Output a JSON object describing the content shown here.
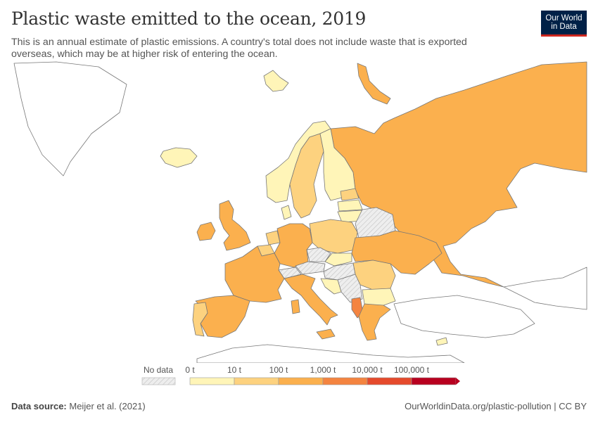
{
  "header": {
    "title": "Plastic waste emitted to the ocean, 2019",
    "subtitle": "This is an annual estimate of plastic emissions. A country's total does not include waste that is exported overseas, which may be at higher risk of entering the ocean."
  },
  "logo": {
    "line1": "Our World",
    "line2": "in Data"
  },
  "legend": {
    "no_data_label": "No data",
    "bins": [
      {
        "label": "0 t",
        "color": "#fff5b8"
      },
      {
        "label": "10 t",
        "color": "#fdd27f"
      },
      {
        "label": "100 t",
        "color": "#fbb04e"
      },
      {
        "label": "1,000 t",
        "color": "#f48440"
      },
      {
        "label": "10,000 t",
        "color": "#e54a2c"
      },
      {
        "label": "100,000 t",
        "color": "#b8001f"
      }
    ]
  },
  "colors": {
    "no_data_fill": "#eeeeee",
    "outline": "#666666",
    "background_land": "#ffffff"
  },
  "regions": [
    {
      "name": "Russia",
      "category": "100 t"
    },
    {
      "name": "Norway",
      "category": "0 t"
    },
    {
      "name": "Sweden",
      "category": "10 t"
    },
    {
      "name": "Finland",
      "category": "0 t"
    },
    {
      "name": "Iceland",
      "category": "0 t"
    },
    {
      "name": "United Kingdom",
      "category": "100 t"
    },
    {
      "name": "Ireland",
      "category": "100 t"
    },
    {
      "name": "France",
      "category": "100 t"
    },
    {
      "name": "Spain",
      "category": "100 t"
    },
    {
      "name": "Portugal",
      "category": "10 t"
    },
    {
      "name": "Germany",
      "category": "100 t"
    },
    {
      "name": "Poland",
      "category": "10 t"
    },
    {
      "name": "Ukraine",
      "category": "100 t"
    },
    {
      "name": "Italy",
      "category": "100 t"
    },
    {
      "name": "Romania",
      "category": "10 t"
    },
    {
      "name": "Bulgaria",
      "category": "0 t"
    },
    {
      "name": "Greece",
      "category": "100 t"
    },
    {
      "name": "Albania",
      "category": "1,000 t"
    },
    {
      "name": "Croatia",
      "category": "0 t"
    },
    {
      "name": "Netherlands",
      "category": "10 t"
    },
    {
      "name": "Belgium",
      "category": "10 t"
    },
    {
      "name": "Denmark",
      "category": "0 t"
    },
    {
      "name": "Estonia",
      "category": "10 t"
    },
    {
      "name": "Latvia",
      "category": "0 t"
    },
    {
      "name": "Lithuania",
      "category": "0 t"
    },
    {
      "name": "Belarus",
      "category": "No data"
    },
    {
      "name": "Switzerland",
      "category": "No data"
    },
    {
      "name": "Austria",
      "category": "No data"
    },
    {
      "name": "Czechia",
      "category": "No data"
    },
    {
      "name": "Hungary",
      "category": "No data"
    },
    {
      "name": "Slovakia",
      "category": "0 t"
    },
    {
      "name": "Serbia",
      "category": "No data"
    },
    {
      "name": "Cyprus",
      "category": "0 t"
    },
    {
      "name": "Svalbard",
      "category": "0 t"
    },
    {
      "name": "Novaya Zemlya",
      "category": "100 t"
    }
  ],
  "footer": {
    "source_label": "Data source:",
    "source_value": "Meijer et al. (2021)",
    "right": "OurWorldinData.org/plastic-pollution | CC BY"
  }
}
